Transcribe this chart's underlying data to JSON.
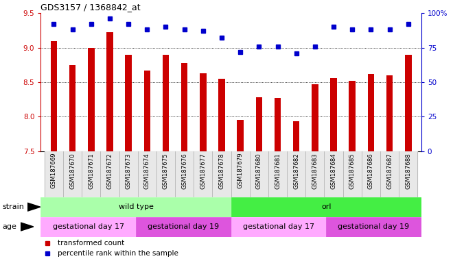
{
  "title": "GDS3157 / 1368842_at",
  "samples": [
    "GSM187669",
    "GSM187670",
    "GSM187671",
    "GSM187672",
    "GSM187673",
    "GSM187674",
    "GSM187675",
    "GSM187676",
    "GSM187677",
    "GSM187678",
    "GSM187679",
    "GSM187680",
    "GSM187681",
    "GSM187682",
    "GSM187683",
    "GSM187684",
    "GSM187685",
    "GSM187686",
    "GSM187687",
    "GSM187688"
  ],
  "transformed_count": [
    9.1,
    8.75,
    9.0,
    9.22,
    8.9,
    8.67,
    8.9,
    8.78,
    8.63,
    8.55,
    7.95,
    8.28,
    8.27,
    7.93,
    8.47,
    8.56,
    8.52,
    8.62,
    8.6,
    8.9
  ],
  "percentile_rank": [
    92,
    88,
    92,
    96,
    92,
    88,
    90,
    88,
    87,
    82,
    72,
    76,
    76,
    71,
    76,
    90,
    88,
    88,
    88,
    92
  ],
  "ylim_left": [
    7.5,
    9.5
  ],
  "ylim_right": [
    0,
    100
  ],
  "yticks_left": [
    7.5,
    8.0,
    8.5,
    9.0,
    9.5
  ],
  "yticks_right": [
    0,
    25,
    50,
    75,
    100
  ],
  "ytick_labels_right": [
    "0",
    "25",
    "50",
    "75",
    "100%"
  ],
  "bar_color": "#cc0000",
  "dot_color": "#0000cc",
  "strain_labels": [
    {
      "text": "wild type",
      "start": 0,
      "end": 10,
      "color": "#aaffaa"
    },
    {
      "text": "orl",
      "start": 10,
      "end": 20,
      "color": "#44ee44"
    }
  ],
  "age_labels": [
    {
      "text": "gestational day 17",
      "start": 0,
      "end": 5,
      "color": "#ffaaff"
    },
    {
      "text": "gestational day 19",
      "start": 5,
      "end": 10,
      "color": "#dd55dd"
    },
    {
      "text": "gestational day 17",
      "start": 10,
      "end": 15,
      "color": "#ffaaff"
    },
    {
      "text": "gestational day 19",
      "start": 15,
      "end": 20,
      "color": "#dd55dd"
    }
  ],
  "legend_items": [
    {
      "label": "transformed count",
      "color": "#cc0000"
    },
    {
      "label": "percentile rank within the sample",
      "color": "#0000cc"
    }
  ]
}
